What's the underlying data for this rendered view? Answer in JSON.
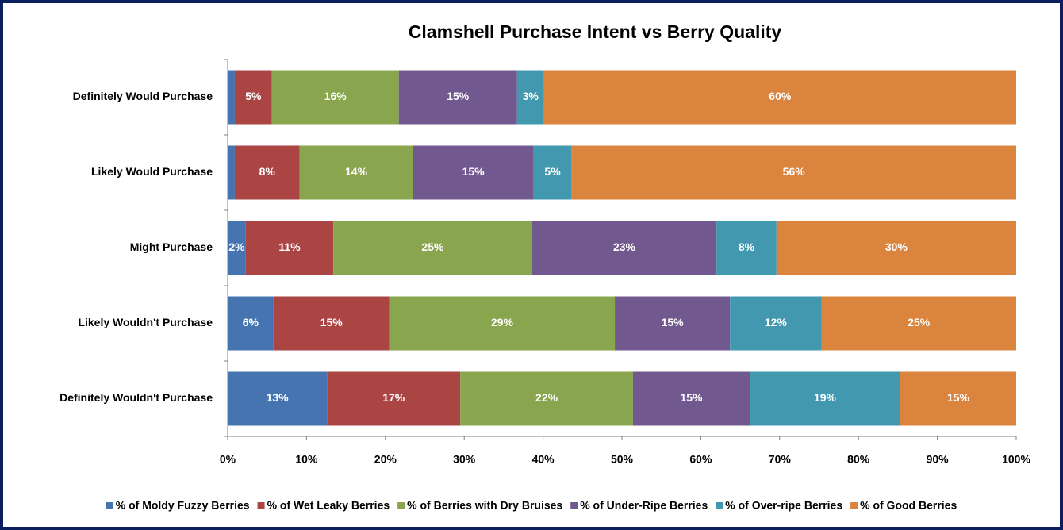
{
  "chart_data": {
    "type": "stacked_bar_horizontal",
    "title": "Clamshell Purchase Intent vs Berry Quality",
    "categories": [
      "Definitely Would Purchase",
      "Likely Would Purchase",
      "Might Purchase",
      "Likely Wouldn't Purchase",
      "Definitely Wouldn't Purchase"
    ],
    "series": [
      {
        "name": "% of Moldy Fuzzy Berries",
        "color": "#4674b0",
        "values": [
          0.9,
          0.9,
          2.3,
          5.8,
          12.6
        ],
        "value_labels": [
          null,
          null,
          "2%",
          "6%",
          "13%"
        ]
      },
      {
        "name": "% of Wet Leaky Berries",
        "color": "#aa4544",
        "values": [
          4.7,
          8.2,
          11.1,
          14.7,
          16.9
        ],
        "value_labels": [
          "5%",
          "8%",
          "11%",
          "15%",
          "17%"
        ]
      },
      {
        "name": "% of Berries with Dry Bruises",
        "color": "#89a54e",
        "values": [
          16.1,
          14.4,
          25.2,
          28.6,
          21.9
        ],
        "value_labels": [
          "16%",
          "14%",
          "25%",
          "29%",
          "22%"
        ]
      },
      {
        "name": "% of Under-Ripe Berries",
        "color": "#71588f",
        "values": [
          15.0,
          15.3,
          23.4,
          14.6,
          14.8
        ],
        "value_labels": [
          "15%",
          "15%",
          "23%",
          "15%",
          "15%"
        ]
      },
      {
        "name": "% of Over-ripe Berries",
        "color": "#4198af",
        "values": [
          3.4,
          4.8,
          7.6,
          11.6,
          19.1
        ],
        "value_labels": [
          "3%",
          "5%",
          "8%",
          "12%",
          "19%"
        ]
      },
      {
        "name": "% of Good Berries",
        "color": "#db843d",
        "values": [
          59.9,
          56.4,
          30.4,
          24.7,
          14.7
        ],
        "value_labels": [
          "60%",
          "56%",
          "30%",
          "25%",
          "15%"
        ]
      }
    ],
    "xlim": [
      0,
      100
    ],
    "xticks": [
      {
        "value": 0,
        "label": "0%"
      },
      {
        "value": 10,
        "label": "10%"
      },
      {
        "value": 20,
        "label": "20%"
      },
      {
        "value": 30,
        "label": "30%"
      },
      {
        "value": 40,
        "label": "40%"
      },
      {
        "value": 50,
        "label": "50%"
      },
      {
        "value": 60,
        "label": "60%"
      },
      {
        "value": 70,
        "label": "70%"
      },
      {
        "value": 80,
        "label": "80%"
      },
      {
        "value": 90,
        "label": "90%"
      },
      {
        "value": 100,
        "label": "100%"
      }
    ],
    "grid": false,
    "legend": "bottom"
  }
}
